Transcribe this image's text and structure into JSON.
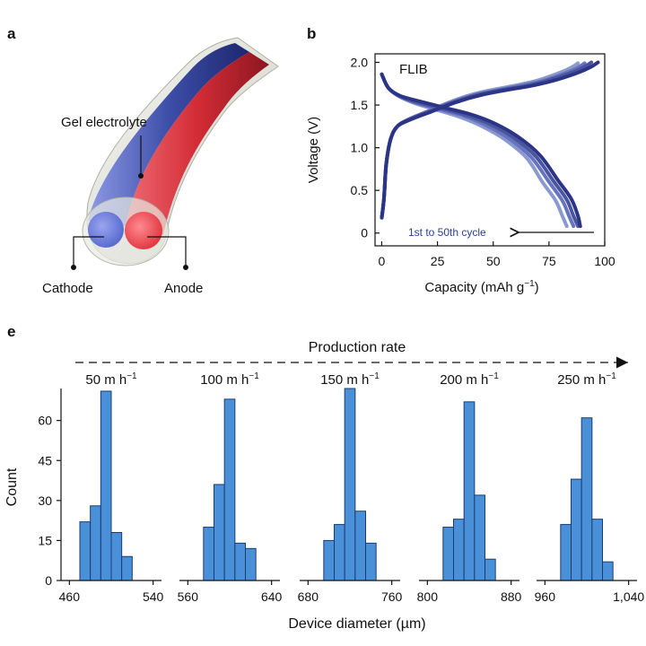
{
  "panel_labels": {
    "a": "a",
    "b": "b",
    "e": "e"
  },
  "diagram_a": {
    "labels": {
      "gel": "Gel electrolyte",
      "cathode": "Cathode",
      "anode": "Anode"
    },
    "colors": {
      "cathode": "#5a6fd6",
      "anode": "#e8343f",
      "sheath": "#d7d9cf"
    }
  },
  "chart_data": [
    {
      "type": "line",
      "panel": "b",
      "title": "",
      "annotation": "FLIB",
      "cycle_label": "1st to 50th cycle",
      "xlabel": "Capacity (mAh g",
      "xlabel_sup": "−1",
      "xlabel_end": ")",
      "ylabel": "Voltage (V)",
      "xlim": [
        -3,
        100
      ],
      "ylim": [
        -0.15,
        2.1
      ],
      "xticks": [
        0,
        25,
        50,
        75,
        100
      ],
      "xtick_labels": [
        "0",
        "25",
        "50",
        "75",
        "100"
      ],
      "yticks": [
        0,
        0.5,
        1.0,
        1.5,
        2.0
      ],
      "ytick_labels": [
        "0",
        "0.5",
        "1.0",
        "1.5",
        "2.0"
      ],
      "series": [
        {
          "charge": [
            [
              0,
              0.18
            ],
            [
              1,
              0.4
            ],
            [
              2,
              0.8
            ],
            [
              4,
              1.1
            ],
            [
              7,
              1.25
            ],
            [
              12,
              1.33
            ],
            [
              20,
              1.42
            ],
            [
              30,
              1.53
            ],
            [
              40,
              1.62
            ],
            [
              50,
              1.68
            ],
            [
              60,
              1.73
            ],
            [
              70,
              1.79
            ],
            [
              80,
              1.88
            ],
            [
              85,
              1.94
            ],
            [
              88,
              1.99
            ]
          ],
          "discharge": [
            [
              0,
              1.86
            ],
            [
              3,
              1.7
            ],
            [
              8,
              1.6
            ],
            [
              15,
              1.52
            ],
            [
              25,
              1.44
            ],
            [
              35,
              1.36
            ],
            [
              45,
              1.25
            ],
            [
              55,
              1.1
            ],
            [
              65,
              0.88
            ],
            [
              72,
              0.6
            ],
            [
              78,
              0.38
            ],
            [
              81,
              0.2
            ],
            [
              83,
              0.08
            ]
          ]
        },
        {
          "charge": [
            [
              0,
              0.18
            ],
            [
              1,
              0.4
            ],
            [
              2,
              0.8
            ],
            [
              4,
              1.1
            ],
            [
              7,
              1.25
            ],
            [
              12,
              1.33
            ],
            [
              20,
              1.42
            ],
            [
              31,
              1.53
            ],
            [
              42,
              1.62
            ],
            [
              53,
              1.68
            ],
            [
              63,
              1.73
            ],
            [
              73,
              1.79
            ],
            [
              83,
              1.88
            ],
            [
              88,
              1.94
            ],
            [
              91,
              1.99
            ]
          ],
          "discharge": [
            [
              0,
              1.86
            ],
            [
              3,
              1.7
            ],
            [
              8,
              1.6
            ],
            [
              15,
              1.53
            ],
            [
              26,
              1.45
            ],
            [
              37,
              1.37
            ],
            [
              47,
              1.26
            ],
            [
              57,
              1.11
            ],
            [
              67,
              0.89
            ],
            [
              75,
              0.6
            ],
            [
              81,
              0.38
            ],
            [
              84,
              0.2
            ],
            [
              86,
              0.08
            ]
          ]
        },
        {
          "charge": [
            [
              0,
              0.18
            ],
            [
              1,
              0.4
            ],
            [
              2,
              0.8
            ],
            [
              4,
              1.1
            ],
            [
              7,
              1.25
            ],
            [
              12,
              1.33
            ],
            [
              21,
              1.42
            ],
            [
              32,
              1.53
            ],
            [
              43,
              1.62
            ],
            [
              55,
              1.68
            ],
            [
              66,
              1.73
            ],
            [
              76,
              1.8
            ],
            [
              86,
              1.89
            ],
            [
              91,
              1.95
            ],
            [
              94,
              2.0
            ]
          ],
          "discharge": [
            [
              0,
              1.86
            ],
            [
              3,
              1.7
            ],
            [
              8,
              1.61
            ],
            [
              15,
              1.54
            ],
            [
              27,
              1.46
            ],
            [
              38,
              1.38
            ],
            [
              49,
              1.27
            ],
            [
              59,
              1.12
            ],
            [
              69,
              0.9
            ],
            [
              77,
              0.61
            ],
            [
              83,
              0.39
            ],
            [
              86,
              0.2
            ],
            [
              88,
              0.08
            ]
          ]
        },
        {
          "charge": [
            [
              0,
              0.18
            ],
            [
              1,
              0.4
            ],
            [
              2,
              0.8
            ],
            [
              4,
              1.1
            ],
            [
              7,
              1.25
            ],
            [
              13,
              1.33
            ],
            [
              22,
              1.42
            ],
            [
              33,
              1.53
            ],
            [
              45,
              1.62
            ],
            [
              57,
              1.68
            ],
            [
              68,
              1.73
            ],
            [
              79,
              1.8
            ],
            [
              89,
              1.89
            ],
            [
              94,
              1.95
            ],
            [
              97,
              2.0
            ]
          ],
          "discharge": [
            [
              0,
              1.86
            ],
            [
              3,
              1.7
            ],
            [
              8,
              1.61
            ],
            [
              16,
              1.55
            ],
            [
              28,
              1.47
            ],
            [
              40,
              1.39
            ],
            [
              51,
              1.28
            ],
            [
              61,
              1.13
            ],
            [
              71,
              0.91
            ],
            [
              79,
              0.62
            ],
            [
              85,
              0.4
            ],
            [
              88,
              0.2
            ],
            [
              89,
              0.08
            ]
          ]
        }
      ],
      "series_colors": [
        "#8a9ad0",
        "#6674bd",
        "#4a559f",
        "#2c3585"
      ],
      "arrow_color": "#111111",
      "cycle_label_color": "#2c3f99"
    },
    {
      "type": "bar",
      "panel": "e",
      "production_label": "Production rate",
      "ylabel": "Count",
      "xlabel": "Device diameter (µm)",
      "ylim": [
        0,
        72
      ],
      "yticks": [
        0,
        15,
        30,
        45,
        60
      ],
      "ytick_labels": [
        "0",
        "15",
        "30",
        "45",
        "60"
      ],
      "bar_color": "#4a90d8",
      "bar_edge": "#1a3d70",
      "groups": [
        {
          "rate_label": "50 m h",
          "rate_sup": "−1",
          "xlim": [
            452,
            548
          ],
          "xticks": [
            460,
            540
          ],
          "xtick_labels": [
            "460",
            "540"
          ],
          "bins": [
            [
              475,
              22
            ],
            [
              485,
              28
            ],
            [
              495,
              71
            ],
            [
              505,
              18
            ],
            [
              515,
              9
            ]
          ],
          "bin_width": 10
        },
        {
          "rate_label": "100 m h",
          "rate_sup": "−1",
          "xlim": [
            552,
            648
          ],
          "xticks": [
            560,
            640
          ],
          "xtick_labels": [
            "560",
            "640"
          ],
          "bins": [
            [
              580,
              20
            ],
            [
              590,
              36
            ],
            [
              600,
              68
            ],
            [
              610,
              14
            ],
            [
              620,
              12
            ]
          ],
          "bin_width": 10
        },
        {
          "rate_label": "150 m h",
          "rate_sup": "−1",
          "xlim": [
            672,
            768
          ],
          "xticks": [
            680,
            760
          ],
          "xtick_labels": [
            "680",
            "760"
          ],
          "bins": [
            [
              700,
              15
            ],
            [
              710,
              21
            ],
            [
              720,
              72
            ],
            [
              730,
              26
            ],
            [
              740,
              14
            ]
          ],
          "bin_width": 10
        },
        {
          "rate_label": "200 m h",
          "rate_sup": "−1",
          "xlim": [
            792,
            888
          ],
          "xticks": [
            800,
            880
          ],
          "xtick_labels": [
            "800",
            "880"
          ],
          "bins": [
            [
              820,
              20
            ],
            [
              830,
              23
            ],
            [
              840,
              67
            ],
            [
              850,
              32
            ],
            [
              860,
              8
            ]
          ],
          "bin_width": 10
        },
        {
          "rate_label": "250 m h",
          "rate_sup": "−1",
          "xlim": [
            952,
            1048
          ],
          "xticks": [
            960,
            1040
          ],
          "xtick_labels": [
            "960",
            "1,040"
          ],
          "bins": [
            [
              980,
              21
            ],
            [
              990,
              38
            ],
            [
              1000,
              61
            ],
            [
              1010,
              23
            ],
            [
              1020,
              7
            ]
          ],
          "bin_width": 10
        }
      ]
    }
  ]
}
